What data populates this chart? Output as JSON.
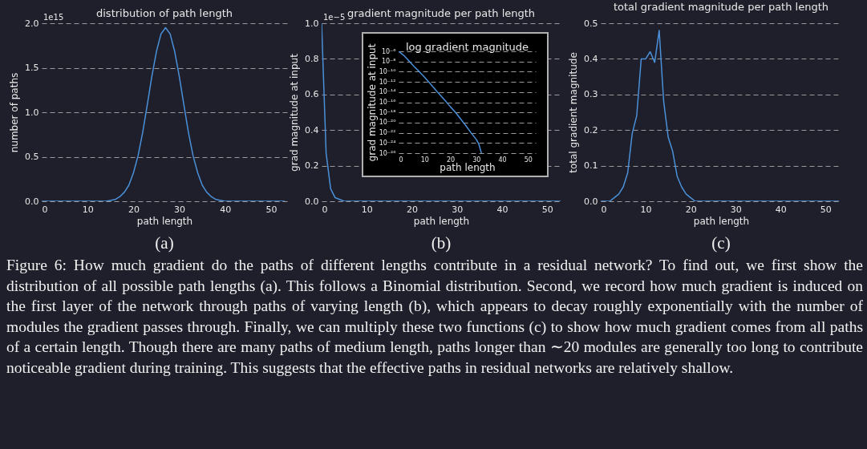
{
  "chart_data": [
    {
      "type": "line",
      "title": "distribution of path length",
      "xlabel": "path length",
      "ylabel": "number of paths",
      "color": "#4a90d9",
      "x": [
        0,
        1,
        2,
        3,
        4,
        5,
        6,
        7,
        8,
        9,
        10,
        11,
        12,
        13,
        14,
        15,
        16,
        17,
        18,
        19,
        20,
        21,
        22,
        23,
        24,
        25,
        26,
        27,
        28,
        29,
        30,
        31,
        32,
        33,
        34,
        35,
        36,
        37,
        38,
        39,
        40,
        41,
        42,
        43,
        44,
        45,
        46,
        47,
        48,
        49,
        50,
        51,
        52,
        53
      ],
      "values": [
        0,
        0,
        0,
        0,
        0,
        0,
        0,
        0,
        0,
        0,
        0,
        0,
        0,
        0,
        0,
        0.01,
        0.02,
        0.05,
        0.1,
        0.18,
        0.32,
        0.51,
        0.77,
        1.08,
        1.4,
        1.68,
        1.88,
        1.95,
        1.88,
        1.68,
        1.4,
        1.08,
        0.77,
        0.51,
        0.32,
        0.18,
        0.1,
        0.05,
        0.02,
        0.01,
        0,
        0,
        0,
        0,
        0,
        0,
        0,
        0,
        0,
        0,
        0,
        0,
        0,
        0
      ],
      "xlim": [
        0,
        53.5
      ],
      "xticks": [
        0,
        10,
        20,
        30,
        40,
        50
      ],
      "ylim": [
        0,
        2
      ],
      "yticks": [
        {
          "value": 0,
          "label": "0.0"
        },
        {
          "value": 0.5,
          "label": "0.5"
        },
        {
          "value": 1,
          "label": "1.0"
        },
        {
          "value": 1.5,
          "label": "1.5"
        },
        {
          "value": 2,
          "label": "2.0"
        }
      ],
      "grid": "y",
      "annotations": [
        "1e15",
        "(a)",
        "Figure 6: How much gradient do the paths of different lengths contribute in a residual network? To find out, we first show the distribution of all possible path lengths (a). This follows a Binomial distribution. Second, we record how much gradient is induced on the first layer of the network through paths of varying length (b), which appears to decay roughly exponentially with the number of modules the gradient passes through. Finally, we can multiply these two functions (c) to show how much gradient comes from all paths of a certain length. Though there are many paths of medium length, paths longer than ∼20 modules are generally too long to contribute noticeable gradient during training. This suggests that the effective paths in residual networks are relatively shallow."
      ]
    },
    {
      "type": "line",
      "title": "gradient magnitude per path length",
      "xlabel": "path length",
      "ylabel": "grad magnitude at input",
      "color": "#4a90d9",
      "x": [
        0,
        1,
        2,
        3,
        4,
        5,
        6,
        7,
        8,
        9,
        10,
        11,
        12,
        13,
        14,
        15,
        16,
        17,
        18,
        19,
        20,
        21,
        22,
        23,
        24,
        25,
        26,
        27,
        28,
        29,
        30,
        31,
        32,
        33,
        34,
        35,
        36,
        37,
        38,
        39,
        40,
        41,
        42,
        43,
        44,
        45,
        46,
        47,
        48,
        49,
        50,
        51,
        52,
        53
      ],
      "values": [
        1.0,
        0.27,
        0.07,
        0.02,
        0.01,
        0,
        0,
        0,
        0,
        0,
        0,
        0,
        0,
        0,
        0,
        0,
        0,
        0,
        0,
        0,
        0,
        0,
        0,
        0,
        0,
        0,
        0,
        0,
        0,
        0,
        0,
        0,
        0,
        0,
        0,
        0,
        0,
        0,
        0,
        0,
        0,
        0,
        0,
        0,
        0,
        0,
        0,
        0,
        0,
        0,
        0,
        0,
        0,
        0
      ],
      "xlim": [
        0,
        53
      ],
      "xticks": [
        0,
        10,
        20,
        30,
        40,
        50
      ],
      "ylim": [
        0,
        1
      ],
      "yticks": [
        {
          "value": 0,
          "label": "0.0"
        },
        {
          "value": 0.2,
          "label": "0.2"
        },
        {
          "value": 0.4,
          "label": "0.4"
        },
        {
          "value": 0.6,
          "label": "0.6"
        },
        {
          "value": 0.8,
          "label": "0.8"
        },
        {
          "value": 1,
          "label": "1.0"
        }
      ],
      "grid": "y",
      "annotations": [
        "1e−5",
        "(b)"
      ]
    },
    {
      "type": "line",
      "title": "log gradient magnitude",
      "xlabel": "path length",
      "ylabel": "grad magnitude at input",
      "color": "#4a90d9",
      "log": true,
      "x": [
        0,
        2,
        4,
        6,
        8,
        10,
        12,
        15,
        18,
        20,
        22,
        24,
        26,
        28,
        30,
        31,
        32
      ],
      "values": [
        1e-06,
        1.6e-07,
        1.3e-08,
        1e-09,
        1e-10,
        8e-12,
        6e-13,
        1e-14,
        2e-16,
        1.3e-17,
        1e-18,
        5e-20,
        2.5e-21,
        1e-22,
        5e-24,
        6e-25,
        1e-26
      ],
      "xlim": [
        0,
        53
      ],
      "xticks": [
        0,
        10,
        20,
        30,
        40,
        50
      ],
      "ylim": [
        1e-26,
        1e-06
      ],
      "yticks": [
        {
          "value": 1e-06,
          "label": "10⁻⁶"
        },
        {
          "value": 1e-08,
          "label": "10⁻⁸"
        },
        {
          "value": 1e-10,
          "label": "10⁻¹⁰"
        },
        {
          "value": 1e-12,
          "label": "10⁻¹²"
        },
        {
          "value": 1e-14,
          "label": "10⁻¹⁴"
        },
        {
          "value": 1e-16,
          "label": "10⁻¹⁶"
        },
        {
          "value": 1e-18,
          "label": "10⁻¹⁸"
        },
        {
          "value": 1e-20,
          "label": "10⁻²⁰"
        },
        {
          "value": 1e-22,
          "label": "10⁻²²"
        },
        {
          "value": 1e-24,
          "label": "10⁻²⁴"
        },
        {
          "value": 1e-26,
          "label": "10⁻²⁶"
        }
      ],
      "grid": "y"
    },
    {
      "type": "line",
      "title": "total gradient magnitude per path length",
      "xlabel": "path length",
      "ylabel": "total gradient magnitude",
      "color": "#4a90d9",
      "x": [
        0,
        1,
        2,
        3,
        4,
        5,
        6,
        7,
        8,
        9,
        10,
        11,
        12,
        13,
        14,
        15,
        16,
        17,
        18,
        19,
        20,
        21,
        22,
        23,
        24,
        25,
        26,
        27,
        28,
        29,
        30,
        31,
        32,
        33,
        34,
        35,
        36,
        37,
        38,
        39,
        40,
        41,
        42,
        43,
        44,
        45,
        46,
        47,
        48,
        49,
        50,
        51,
        52,
        53
      ],
      "values": [
        0,
        0,
        0,
        0.01,
        0.02,
        0.04,
        0.08,
        0.19,
        0.24,
        0.4,
        0.4,
        0.42,
        0.39,
        0.48,
        0.28,
        0.18,
        0.14,
        0.07,
        0.04,
        0.02,
        0.01,
        0,
        0,
        0,
        0,
        0,
        0,
        0,
        0,
        0,
        0,
        0,
        0,
        0,
        0,
        0,
        0,
        0,
        0,
        0,
        0,
        0,
        0,
        0,
        0,
        0,
        0,
        0,
        0,
        0,
        0,
        0,
        0,
        0
      ],
      "xlim": [
        0,
        53.5
      ],
      "xticks": [
        0,
        10,
        20,
        30,
        40,
        50
      ],
      "ylim": [
        0,
        0.5
      ],
      "yticks": [
        {
          "value": 0,
          "label": "0.0"
        },
        {
          "value": 0.1,
          "label": "0.1"
        },
        {
          "value": 0.2,
          "label": "0.2"
        },
        {
          "value": 0.3,
          "label": "0.3"
        },
        {
          "value": 0.4,
          "label": "0.4"
        },
        {
          "value": 0.5,
          "label": "0.5"
        }
      ],
      "grid": "y",
      "annotations": [
        "(c)"
      ]
    }
  ]
}
